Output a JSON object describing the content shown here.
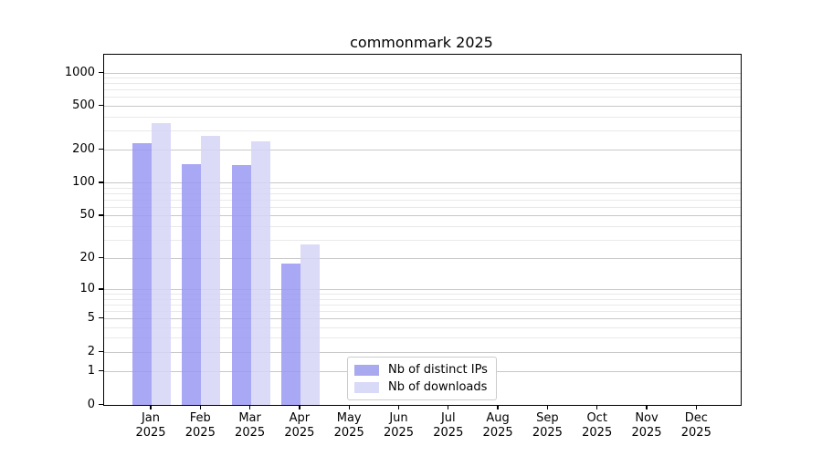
{
  "chart_data": {
    "type": "bar",
    "title": "commonmark 2025",
    "x_categories": [
      "Jan",
      "Feb",
      "Mar",
      "Apr",
      "May",
      "Jun",
      "Jul",
      "Aug",
      "Sep",
      "Oct",
      "Nov",
      "Dec"
    ],
    "x_year_label": "2025",
    "series": [
      {
        "name": "Nb of distinct IPs",
        "color": "#9999f3",
        "swatch": "#a9a9ef",
        "values": [
          233,
          150,
          145,
          18,
          null,
          null,
          null,
          null,
          null,
          null,
          null,
          null
        ]
      },
      {
        "name": "Nb of downloads",
        "color": "#d5d5f7",
        "swatch": "#d9d9f8",
        "values": [
          353,
          267,
          238,
          27,
          null,
          null,
          null,
          null,
          null,
          null,
          null,
          null
        ]
      }
    ],
    "y_scale": "log1p",
    "y_major_ticks": [
      0,
      1,
      2,
      5,
      10,
      20,
      50,
      100,
      200,
      500,
      1000
    ],
    "y_minor_ticks": [
      3,
      4,
      6,
      7,
      8,
      9,
      30,
      40,
      60,
      70,
      80,
      90,
      300,
      400,
      600,
      700,
      800,
      900
    ],
    "ylim": [
      0,
      1460
    ],
    "grid": "horizontal",
    "legend_position": "lower center",
    "xlabel": "",
    "ylabel": ""
  },
  "colors": {
    "grid_major": "#c8c8c8",
    "grid_minor": "#e9e9e9",
    "spine": "#000000",
    "background": "#ffffff"
  }
}
